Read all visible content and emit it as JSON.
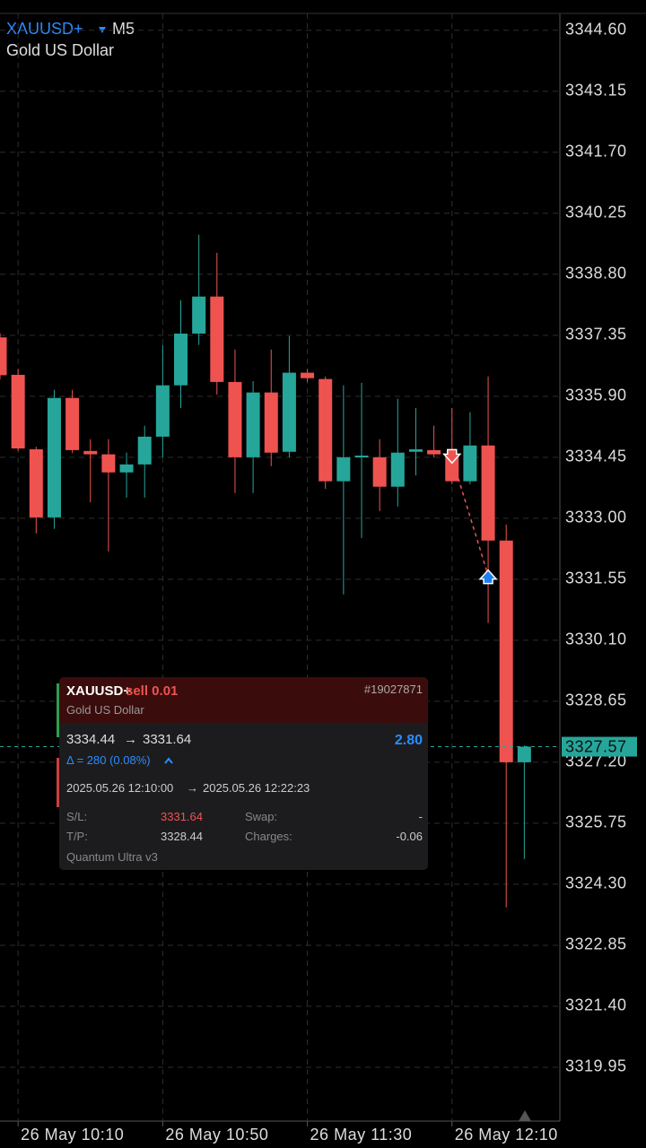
{
  "chart_data": {
    "type": "candlestick",
    "symbol": "XAUUSD+",
    "timeframe": "M5",
    "subtitle": "Gold US Dollar",
    "categories": [
      null,
      "26 May 10:10",
      null,
      null,
      null,
      null,
      null,
      null,
      null,
      "26 May 10:50",
      null,
      null,
      null,
      null,
      null,
      null,
      null,
      "26 May 11:30",
      null,
      null,
      null,
      null,
      null,
      null,
      null,
      "26 May 12:10",
      null,
      null,
      null,
      null
    ],
    "open": [
      3337.3,
      3336.41,
      3334.64,
      3333.02,
      3335.86,
      3334.6,
      3334.52,
      3334.09,
      3334.28,
      3334.94,
      3336.16,
      3337.39,
      3338.27,
      3336.24,
      3334.45,
      3335.99,
      3334.58,
      3336.46,
      3336.31,
      3333.88,
      3334.45,
      3334.45,
      3333.75,
      3334.58,
      3334.62,
      3334.45,
      3333.88,
      3334.73,
      3332.47,
      3327.2
    ],
    "high": [
      3337.4,
      3336.55,
      3334.7,
      3336.05,
      3336.05,
      3334.88,
      3334.88,
      3334.56,
      3335.2,
      3337.12,
      3338.18,
      3339.74,
      3339.31,
      3337.01,
      3336.26,
      3337.01,
      3337.33,
      3336.55,
      3336.37,
      3336.16,
      3336.22,
      3334.88,
      3335.84,
      3335.62,
      3335.2,
      3335.62,
      3335.52,
      3336.37,
      3332.85,
      3327.6
    ],
    "low": [
      3336.3,
      3334.6,
      3332.64,
      3332.75,
      3334.55,
      3333.38,
      3332.21,
      3333.49,
      3333.49,
      3334.45,
      3335.62,
      3337.12,
      3335.94,
      3333.6,
      3333.6,
      3334.24,
      3334.45,
      3336.24,
      3333.7,
      3331.19,
      3332.53,
      3333.17,
      3333.28,
      3334.02,
      3334.45,
      3333.81,
      3333.81,
      3330.51,
      3323.75,
      3324.9
    ],
    "close": [
      3336.4,
      3334.66,
      3333.02,
      3335.86,
      3334.62,
      3334.52,
      3334.09,
      3334.28,
      3334.94,
      3336.16,
      3337.39,
      3338.27,
      3336.24,
      3334.45,
      3335.99,
      3334.56,
      3336.46,
      3336.33,
      3333.88,
      3334.45,
      3334.49,
      3333.75,
      3334.56,
      3334.64,
      3334.52,
      3333.88,
      3334.73,
      3332.47,
      3327.2,
      3327.57
    ],
    "up_color": "#26a69a",
    "down_color": "#ef5350",
    "ylim": [
      3318.67,
      3345.0
    ],
    "yticks": [
      {
        "value": 3344.6,
        "label": "3344.60"
      },
      3343.15,
      {
        "value": 3341.7,
        "label": "3341.70"
      },
      3340.25,
      {
        "value": 3338.8,
        "label": "3338.80"
      },
      3337.35,
      {
        "value": 3335.9,
        "label": "3335.90"
      },
      3334.45,
      {
        "value": 3333.0,
        "label": "3333.00"
      },
      3331.55,
      {
        "value": 3330.1,
        "label": "3330.10"
      },
      3328.65,
      {
        "value": 3327.2,
        "label": "3327.20"
      },
      3325.75,
      {
        "value": 3324.3,
        "label": "3324.30"
      },
      3322.85,
      {
        "value": 3321.4,
        "label": "3321.40"
      },
      3319.95
    ],
    "grid": true,
    "last_price": 3327.57
  },
  "trade": {
    "symbol": "XAUUSD+",
    "side": "sell 0.01",
    "ticket": "#19027871",
    "description": "Gold US Dollar",
    "open_price": 3334.44,
    "arrow": "→",
    "close_price": 3331.64,
    "profit": "2.80",
    "delta": "Δ = 280 (0.08%)",
    "open_time": "2025.05.26 12:10:00",
    "close_time": "2025.05.26 12:22:23",
    "sl_label": "S/L:",
    "sl": "3331.64",
    "swap_label": "Swap:",
    "swap": "-",
    "tp_label": "T/P:",
    "tp": "3328.44",
    "charges_label": "Charges:",
    "charges": "-0.06",
    "expert": "Quantum Ultra v3"
  }
}
